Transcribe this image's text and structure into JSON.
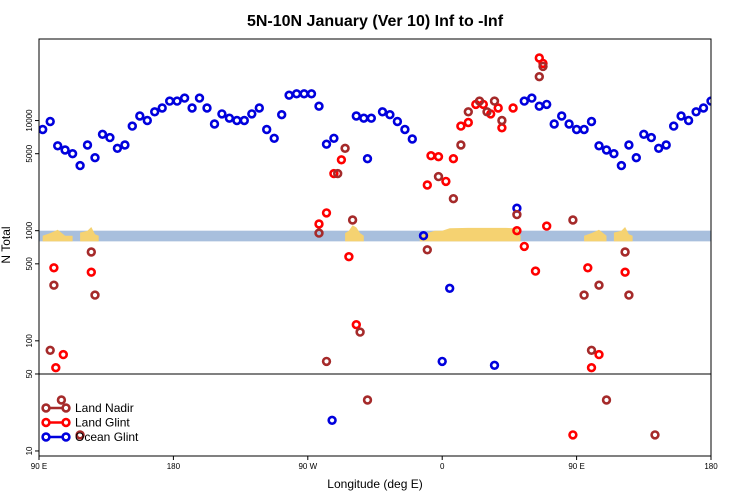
{
  "chart_data": {
    "type": "scatter",
    "title": "5N-10N January (Ver 10)   Inf to -Inf",
    "xlabel": "Longitude (deg E)",
    "ylabel": "N Total",
    "xlim": [
      0,
      360
    ],
    "ylim": [
      9,
      55000
    ],
    "yscale": "log",
    "x_ticks": [
      {
        "x": 0,
        "label": "90 E"
      },
      {
        "x": 72,
        "label": "180"
      },
      {
        "x": 144,
        "label": "90 W"
      },
      {
        "x": 216,
        "label": "0"
      },
      {
        "x": 288,
        "label": "90 E"
      },
      {
        "x": 360,
        "label": "180"
      }
    ],
    "y_ticks": [
      {
        "y": 10,
        "label": "10"
      },
      {
        "y": 50,
        "label": "50"
      },
      {
        "y": 100,
        "label": "100"
      },
      {
        "y": 500,
        "label": "500"
      },
      {
        "y": 1000,
        "label": "1000"
      },
      {
        "y": 5000,
        "label": "5000"
      },
      {
        "y": 10000,
        "label": "10000"
      }
    ],
    "reference_line_y": 50,
    "colors": {
      "land_band": "#a8bfdd",
      "land_fill": "#f5d271",
      "land_nadir": "#a52a2a",
      "land_glint": "#ff0000",
      "ocean_glint": "#0000dd"
    },
    "legend": {
      "position": "bottom-left",
      "entries": [
        "Land Nadir",
        "Land Glint",
        "Ocean Glint"
      ]
    },
    "series": [
      {
        "name": "Ocean Glint",
        "color": "#0000dd",
        "points": [
          [
            2,
            8300
          ],
          [
            6,
            9800
          ],
          [
            10,
            5900
          ],
          [
            14,
            5400
          ],
          [
            18,
            5000
          ],
          [
            22,
            3900
          ],
          [
            26,
            6000
          ],
          [
            30,
            4600
          ],
          [
            34,
            7500
          ],
          [
            38,
            7000
          ],
          [
            42,
            5600
          ],
          [
            46,
            6000
          ],
          [
            50,
            8900
          ],
          [
            54,
            11000
          ],
          [
            58,
            10000
          ],
          [
            62,
            12000
          ],
          [
            66,
            13000
          ],
          [
            70,
            15000
          ],
          [
            74,
            15000
          ],
          [
            78,
            16000
          ],
          [
            82,
            13000
          ],
          [
            86,
            16000
          ],
          [
            90,
            13000
          ],
          [
            94,
            9300
          ],
          [
            98,
            11500
          ],
          [
            102,
            10500
          ],
          [
            106,
            10000
          ],
          [
            110,
            10000
          ],
          [
            114,
            11500
          ],
          [
            118,
            13000
          ],
          [
            122,
            8300
          ],
          [
            126,
            6900
          ],
          [
            130,
            11300
          ],
          [
            134,
            17000
          ],
          [
            138,
            17500
          ],
          [
            142,
            17500
          ],
          [
            146,
            17500
          ],
          [
            150,
            13500
          ],
          [
            154,
            6100
          ],
          [
            158,
            6900
          ],
          [
            176,
            4500
          ],
          [
            170,
            11000
          ],
          [
            174,
            10500
          ],
          [
            178,
            10500
          ],
          [
            184,
            12000
          ],
          [
            188,
            11300
          ],
          [
            192,
            9800
          ],
          [
            196,
            8300
          ],
          [
            200,
            6800
          ],
          [
            206,
            900
          ],
          [
            216,
            65
          ],
          [
            220,
            300
          ],
          [
            244,
            60
          ],
          [
            256,
            1600
          ],
          [
            260,
            15000
          ],
          [
            264,
            16000
          ],
          [
            268,
            13500
          ],
          [
            272,
            14000
          ],
          [
            276,
            9300
          ],
          [
            280,
            11000
          ],
          [
            284,
            9300
          ],
          [
            288,
            8300
          ],
          [
            292,
            8300
          ],
          [
            296,
            9800
          ],
          [
            300,
            5900
          ],
          [
            304,
            5400
          ],
          [
            308,
            5000
          ],
          [
            312,
            3900
          ],
          [
            316,
            6000
          ],
          [
            320,
            4600
          ],
          [
            324,
            7500
          ],
          [
            328,
            7000
          ],
          [
            332,
            5600
          ],
          [
            336,
            6000
          ],
          [
            340,
            8900
          ],
          [
            344,
            11000
          ],
          [
            348,
            10000
          ],
          [
            352,
            12000
          ],
          [
            356,
            13000
          ],
          [
            360,
            15000
          ],
          [
            157,
            19
          ]
        ]
      },
      {
        "name": "Land Glint",
        "color": "#ff0000",
        "points": [
          [
            8,
            460
          ],
          [
            9,
            57
          ],
          [
            13,
            75
          ],
          [
            28,
            420
          ],
          [
            150,
            1150
          ],
          [
            154,
            1450
          ],
          [
            158,
            3300
          ],
          [
            162,
            4400
          ],
          [
            166,
            580
          ],
          [
            170,
            140
          ],
          [
            208,
            2600
          ],
          [
            210,
            4800
          ],
          [
            214,
            4700
          ],
          [
            218,
            2800
          ],
          [
            222,
            4500
          ],
          [
            226,
            8900
          ],
          [
            230,
            9600
          ],
          [
            234,
            14000
          ],
          [
            238,
            14000
          ],
          [
            242,
            11500
          ],
          [
            246,
            13000
          ],
          [
            248,
            8600
          ],
          [
            254,
            13000
          ],
          [
            256,
            1000
          ],
          [
            260,
            720
          ],
          [
            266,
            430
          ],
          [
            268,
            37000
          ],
          [
            270,
            33000
          ],
          [
            272,
            1100
          ],
          [
            286,
            14
          ],
          [
            294,
            460
          ],
          [
            296,
            57
          ],
          [
            300,
            75
          ],
          [
            314,
            420
          ]
        ]
      },
      {
        "name": "Land Nadir",
        "color": "#a52a2a",
        "points": [
          [
            6,
            82
          ],
          [
            8,
            320
          ],
          [
            12,
            29
          ],
          [
            22,
            14
          ],
          [
            28,
            640
          ],
          [
            30,
            260
          ],
          [
            150,
            950
          ],
          [
            154,
            65
          ],
          [
            160,
            3300
          ],
          [
            164,
            5600
          ],
          [
            168,
            1250
          ],
          [
            172,
            120
          ],
          [
            176,
            29
          ],
          [
            208,
            670
          ],
          [
            214,
            3100
          ],
          [
            222,
            1950
          ],
          [
            226,
            6000
          ],
          [
            230,
            12000
          ],
          [
            236,
            15000
          ],
          [
            240,
            12000
          ],
          [
            244,
            15000
          ],
          [
            248,
            10000
          ],
          [
            256,
            1400
          ],
          [
            268,
            25000
          ],
          [
            270,
            31000
          ],
          [
            286,
            1250
          ],
          [
            292,
            260
          ],
          [
            296,
            82
          ],
          [
            300,
            320
          ],
          [
            304,
            29
          ],
          [
            314,
            640
          ],
          [
            316,
            260
          ],
          [
            330,
            14
          ]
        ]
      }
    ],
    "land_band": {
      "y_low": 800,
      "y_high": 1000
    },
    "land_areas": [
      [
        [
          2,
          900
        ],
        [
          6,
          950
        ],
        [
          10,
          1020
        ],
        [
          14,
          900
        ],
        [
          18,
          900
        ]
      ],
      [
        [
          22,
          960
        ],
        [
          26,
          1000
        ],
        [
          28,
          1080
        ],
        [
          30,
          930
        ],
        [
          32,
          900
        ]
      ],
      [
        [
          164,
          950
        ],
        [
          166,
          1000
        ],
        [
          168,
          1120
        ],
        [
          170,
          1070
        ],
        [
          172,
          950
        ],
        [
          174,
          900
        ]
      ],
      [
        [
          204,
          900
        ],
        [
          208,
          950
        ],
        [
          212,
          1000
        ],
        [
          216,
          1000
        ],
        [
          220,
          1050
        ],
        [
          230,
          1060
        ],
        [
          240,
          1060
        ],
        [
          250,
          1060
        ],
        [
          256,
          1050
        ],
        [
          258,
          900
        ]
      ],
      [
        [
          292,
          900
        ],
        [
          296,
          950
        ],
        [
          300,
          1020
        ],
        [
          304,
          900
        ]
      ],
      [
        [
          308,
          960
        ],
        [
          312,
          1000
        ],
        [
          314,
          1080
        ],
        [
          316,
          930
        ],
        [
          318,
          900
        ]
      ]
    ]
  }
}
